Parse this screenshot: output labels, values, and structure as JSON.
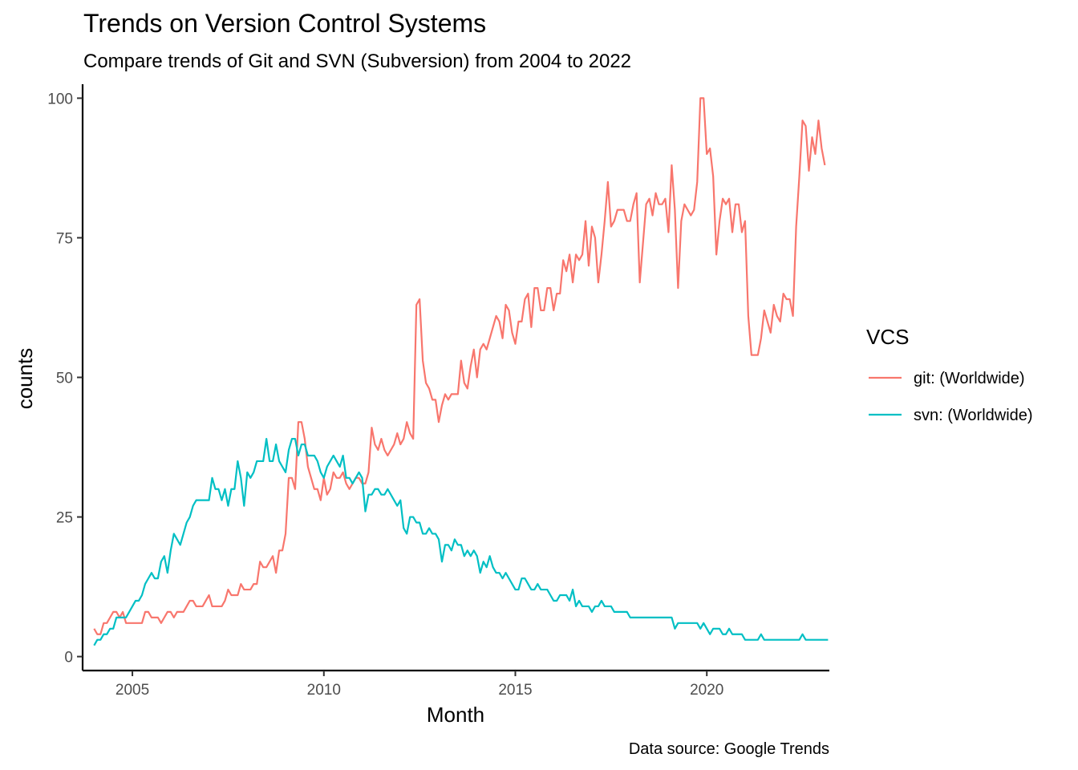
{
  "chart_data": {
    "type": "line",
    "title": "Trends on Version Control Systems",
    "subtitle": "Compare trends of Git and SVN (Subversion) from 2004 to 2022",
    "caption": "Data source: Google Trends",
    "xlabel": "Month",
    "ylabel": "counts",
    "xlim": [
      2003.7,
      2023.2
    ],
    "ylim": [
      -2.5,
      102.5
    ],
    "xticks": [
      2005,
      2010,
      2015,
      2020
    ],
    "yticks": [
      0,
      25,
      50,
      75,
      100
    ],
    "grid": false,
    "legend": {
      "title": "VCS",
      "position": "right"
    },
    "x_start": 2004.0,
    "x_step": 0.08333,
    "series": [
      {
        "name": "git: (Worldwide)",
        "color": "#F8766D",
        "values": [
          5,
          4,
          4,
          6,
          6,
          7,
          8,
          8,
          7,
          8,
          6,
          6,
          6,
          6,
          6,
          6,
          8,
          8,
          7,
          7,
          7,
          6,
          7,
          8,
          8,
          7,
          8,
          8,
          8,
          9,
          10,
          10,
          9,
          9,
          9,
          10,
          11,
          9,
          9,
          9,
          9,
          10,
          12,
          11,
          11,
          11,
          13,
          12,
          12,
          12,
          13,
          13,
          17,
          16,
          16,
          17,
          18,
          15,
          19,
          19,
          22,
          32,
          32,
          30,
          42,
          42,
          39,
          34,
          32,
          30,
          30,
          28,
          32,
          29,
          30,
          33,
          32,
          32,
          33,
          31,
          30,
          31,
          32,
          32,
          31,
          31,
          33,
          41,
          38,
          37,
          39,
          37,
          36,
          37,
          38,
          40,
          38,
          39,
          42,
          40,
          39,
          63,
          64,
          53,
          49,
          48,
          46,
          46,
          42,
          45,
          47,
          46,
          47,
          47,
          47,
          53,
          49,
          48,
          52,
          55,
          50,
          55,
          56,
          55,
          57,
          59,
          61,
          60,
          57,
          63,
          62,
          58,
          56,
          60,
          60,
          64,
          65,
          59,
          66,
          66,
          62,
          62,
          66,
          66,
          62,
          65,
          65,
          71,
          69,
          72,
          67,
          72,
          71,
          72,
          78,
          70,
          77,
          75,
          67,
          72,
          78,
          85,
          77,
          78,
          80,
          80,
          80,
          78,
          78,
          81,
          83,
          67,
          74,
          81,
          82,
          79,
          83,
          81,
          81,
          82,
          76,
          88,
          80,
          66,
          78,
          81,
          80,
          79,
          80,
          85,
          100,
          100,
          90,
          91,
          86,
          72,
          78,
          82,
          81,
          82,
          76,
          81,
          81,
          76,
          78,
          61,
          54,
          54,
          54,
          57,
          62,
          60,
          58,
          63,
          61,
          60,
          65,
          64,
          64,
          61,
          77,
          86,
          96,
          95,
          87,
          93,
          90,
          96,
          91,
          88
        ]
      },
      {
        "name": "svn: (Worldwide)",
        "color": "#00BFC4",
        "values": [
          2,
          3,
          3,
          4,
          4,
          5,
          5,
          7,
          7,
          7,
          7,
          8,
          9,
          10,
          10,
          11,
          13,
          14,
          15,
          14,
          14,
          17,
          18,
          15,
          19,
          22,
          21,
          20,
          22,
          24,
          25,
          27,
          28,
          28,
          28,
          28,
          28,
          32,
          30,
          30,
          28,
          30,
          27,
          30,
          30,
          35,
          32,
          27,
          33,
          32,
          33,
          35,
          35,
          35,
          39,
          35,
          35,
          38,
          35,
          34,
          33,
          37,
          39,
          39,
          36,
          38,
          38,
          36,
          36,
          36,
          35,
          33,
          32,
          34,
          35,
          36,
          35,
          34,
          36,
          32,
          32,
          31,
          32,
          33,
          32,
          26,
          29,
          29,
          30,
          30,
          29,
          29,
          30,
          29,
          28,
          27,
          28,
          23,
          22,
          25,
          25,
          24,
          24,
          22,
          22,
          23,
          22,
          22,
          21,
          17,
          20,
          20,
          19,
          21,
          20,
          20,
          18,
          19,
          18,
          19,
          18,
          15,
          17,
          16,
          18,
          16,
          15,
          15,
          14,
          15,
          14,
          13,
          12,
          12,
          14,
          14,
          13,
          12,
          12,
          13,
          12,
          12,
          12,
          11,
          10,
          10,
          11,
          11,
          11,
          10,
          12,
          9,
          10,
          9,
          9,
          9,
          8,
          9,
          9,
          10,
          9,
          9,
          9,
          8,
          8,
          8,
          8,
          8,
          7,
          7,
          7,
          7,
          7,
          7,
          7,
          7,
          7,
          7,
          7,
          7,
          7,
          7,
          5,
          6,
          6,
          6,
          6,
          6,
          6,
          6,
          5,
          6,
          5,
          4,
          5,
          5,
          5,
          4,
          4,
          5,
          4,
          4,
          4,
          4,
          3,
          3,
          3,
          3,
          3,
          4,
          3,
          3,
          3,
          3,
          3,
          3,
          3,
          3,
          3,
          3,
          3,
          3,
          4,
          3,
          3,
          3,
          3,
          3,
          3,
          3,
          3
        ]
      }
    ]
  }
}
